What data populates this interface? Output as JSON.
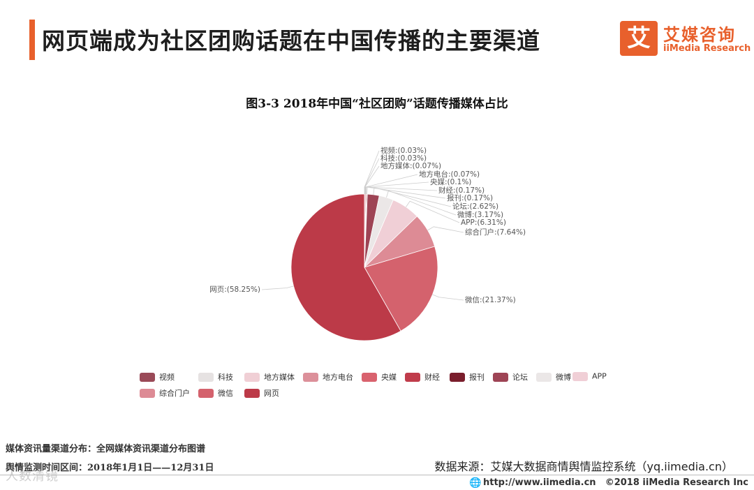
{
  "header": {
    "title": "网页端成为社区团购话题在中国传播的主要渠道",
    "logo_mark": "艾",
    "logo_cn": "艾媒咨询",
    "logo_en": "iiMedia Research"
  },
  "chart_data": {
    "type": "pie",
    "title": "图3-3 2018年中国“社区团购”话题传播媒体占比",
    "slices": [
      {
        "label": "视频",
        "value": 0.03,
        "text": "视频:(0.03%)",
        "color": "#9a4a58"
      },
      {
        "label": "科技",
        "value": 0.03,
        "text": "科技:(0.03%)",
        "color": "#e6e2e2"
      },
      {
        "label": "地方媒体",
        "value": 0.07,
        "text": "地方媒体:(0.07%)",
        "color": "#f0cfd5"
      },
      {
        "label": "地方电台",
        "value": 0.07,
        "text": "地方电台:(0.07%)",
        "color": "#dc909a"
      },
      {
        "label": "央媒",
        "value": 0.1,
        "text": "央媒:(0.1%)",
        "color": "#d9626e"
      },
      {
        "label": "财经",
        "value": 0.17,
        "text": "财经:(0.17%)",
        "color": "#c03c4b"
      },
      {
        "label": "报刊",
        "value": 0.17,
        "text": "报刊:(0.17%)",
        "color": "#7a1e2c"
      },
      {
        "label": "论坛",
        "value": 2.62,
        "text": "论坛:(2.62%)",
        "color": "#9e4455"
      },
      {
        "label": "微博",
        "value": 3.17,
        "text": "微博:(3.17%)",
        "color": "#ebe7e7"
      },
      {
        "label": "APP",
        "value": 6.31,
        "text": "APP:(6.31%)",
        "color": "#f0cfd6"
      },
      {
        "label": "综合门户",
        "value": 7.64,
        "text": "综合门户:(7.64%)",
        "color": "#dd8b95"
      },
      {
        "label": "微信",
        "value": 21.37,
        "text": "微信:(21.37%)",
        "color": "#d4626d"
      },
      {
        "label": "网页",
        "value": 58.25,
        "text": "网页:(58.25%)",
        "color": "#bc3a48"
      }
    ],
    "legend_placement": "bottom"
  },
  "notes": {
    "line1": "媒体资讯量渠道分布：全网媒体资讯渠道分布图谱",
    "line2": "舆情监测时间区间：2018年1月1日——12月31日",
    "source": "数据来源：艾媒大数据商情舆情监控系统（yq.iimedia.cn）"
  },
  "footer": {
    "site": "http://www.iimedia.cn",
    "copyright": "©2018  iiMedia Research  Inc",
    "watermark": "人数清镜"
  }
}
